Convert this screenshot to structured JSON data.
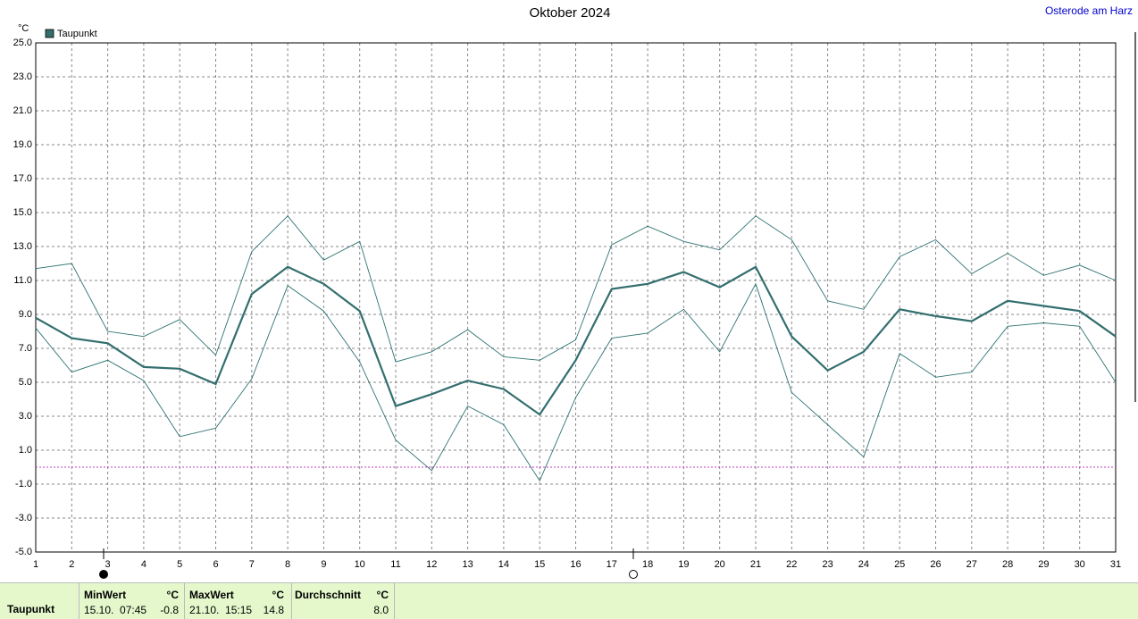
{
  "chart_data": {
    "type": "line",
    "title": "Oktober 2024",
    "y_unit": "°C",
    "x": [
      1,
      2,
      3,
      4,
      5,
      6,
      7,
      8,
      9,
      10,
      11,
      12,
      13,
      14,
      15,
      16,
      17,
      18,
      19,
      20,
      21,
      22,
      23,
      24,
      25,
      26,
      27,
      28,
      29,
      30,
      31
    ],
    "xlim": [
      1,
      31
    ],
    "xticks": [
      1,
      2,
      3,
      4,
      5,
      6,
      7,
      8,
      9,
      10,
      11,
      12,
      13,
      14,
      15,
      16,
      17,
      18,
      19,
      20,
      21,
      22,
      23,
      24,
      25,
      26,
      27,
      28,
      29,
      30,
      31
    ],
    "ylim": [
      -5,
      25
    ],
    "yticks": [
      {
        "value": 25,
        "label": "25.0"
      },
      {
        "value": 23,
        "label": "23.0"
      },
      {
        "value": 21,
        "label": "21.0"
      },
      {
        "value": 19,
        "label": "19.0"
      },
      {
        "value": 17,
        "label": "17.0"
      },
      {
        "value": 15,
        "label": "15.0"
      },
      {
        "value": 13,
        "label": "13.0"
      },
      {
        "value": 11,
        "label": "11.0"
      },
      {
        "value": 9,
        "label": "9.0"
      },
      {
        "value": 7,
        "label": "7.0"
      },
      {
        "value": 5,
        "label": "5.0"
      },
      {
        "value": 3,
        "label": "3.0"
      },
      {
        "value": 1,
        "label": "1.0"
      },
      {
        "value": -1,
        "label": "-1.0"
      },
      {
        "value": -3,
        "label": "-3.0"
      },
      {
        "value": -5,
        "label": "-5.0"
      }
    ],
    "grid": true,
    "legend": "top-left",
    "reference_line": {
      "value": 0,
      "color": "#c040c0"
    },
    "series": [
      {
        "name": "Taupunkt",
        "color": "#336e6e",
        "width": 2.2,
        "values": [
          8.8,
          7.6,
          7.3,
          5.9,
          5.8,
          4.9,
          10.2,
          11.8,
          10.8,
          9.2,
          3.6,
          4.3,
          5.1,
          4.6,
          3.1,
          6.3,
          10.5,
          10.8,
          11.5,
          10.6,
          11.8,
          7.7,
          5.7,
          6.8,
          9.3,
          8.9,
          8.6,
          9.8,
          9.5,
          9.2,
          7.7
        ]
      },
      {
        "color": "#2f7272",
        "width": 0.9,
        "values": [
          11.7,
          12.0,
          8.0,
          7.7,
          8.7,
          6.6,
          12.7,
          14.8,
          12.2,
          13.3,
          6.2,
          6.8,
          8.1,
          6.5,
          6.3,
          7.5,
          13.1,
          14.2,
          13.3,
          12.8,
          14.8,
          13.4,
          9.8,
          9.3,
          12.4,
          13.4,
          11.4,
          12.6,
          11.3,
          11.9,
          11.0
        ]
      },
      {
        "color": "#2f7272",
        "width": 0.9,
        "values": [
          8.2,
          5.6,
          6.3,
          5.1,
          1.8,
          2.3,
          5.2,
          10.7,
          9.2,
          6.2,
          1.6,
          -0.2,
          3.6,
          2.5,
          -0.8,
          4.1,
          7.6,
          7.9,
          9.3,
          6.8,
          10.8,
          4.4,
          2.5,
          0.6,
          6.7,
          5.3,
          5.6,
          8.3,
          8.5,
          8.3,
          5.0
        ]
      }
    ]
  },
  "location": "Osterode am Harz",
  "summary": {
    "label": "Taupunkt",
    "min": {
      "head": "MinWert",
      "unit": "°C",
      "time": "15.10.  07:45",
      "value": "-0.8"
    },
    "max": {
      "head": "MaxWert",
      "unit": "°C",
      "time": "21.10.  15:15",
      "value": "14.8"
    },
    "avg": {
      "head": "Durchschnitt",
      "unit": "°C",
      "value": "8.0"
    }
  }
}
